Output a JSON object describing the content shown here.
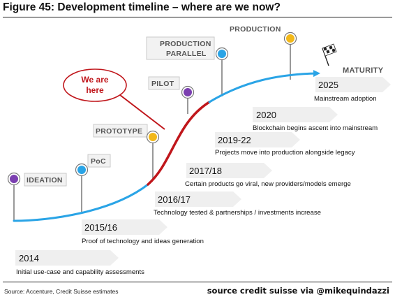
{
  "figure_title": "Figure 45: Development timeline – where are we now?",
  "stages": [
    {
      "label": "IDEATION",
      "dot_color": "#7b3fb0"
    },
    {
      "label": "PoC",
      "dot_color": "#2aa4e6"
    },
    {
      "label": "PROTOTYPE",
      "dot_color": "#f2b81a"
    },
    {
      "label": "PILOT",
      "dot_color": "#7b3fb0"
    },
    {
      "label_line1": "PRODUCTION",
      "label_line2": "PARALLEL",
      "dot_color": "#2aa4e6"
    },
    {
      "label": "PRODUCTION",
      "dot_color": "#f2b81a"
    }
  ],
  "maturity_label": "MATURITY",
  "callout": {
    "line1": "We are",
    "line2": "here"
  },
  "milestones": [
    {
      "year": "2014",
      "text": "Initial use-case and capability assessments"
    },
    {
      "year": "2015/16",
      "text": "Proof of technology and ideas generation"
    },
    {
      "year": "2016/17",
      "text": "Technology tested & partnerships / investments increase"
    },
    {
      "year": "2017/18",
      "text": "Certain products go viral, new providers/models emerge"
    },
    {
      "year": "2019-22",
      "text": "Projects move into production alongside legacy"
    },
    {
      "year": "2020",
      "text": "Blockchain begins ascent into mainstream"
    },
    {
      "year": "2025",
      "text": "Mainstream adoption"
    }
  ],
  "colors": {
    "curve_blue": "#2aa4e6",
    "curve_red": "#c0161b",
    "arrow_gray": "#efefef"
  },
  "footer": {
    "source_left": "Source: Accenture, Credit Suisse estimates",
    "source_right": "source credit suisse via @mikequindazzi"
  }
}
